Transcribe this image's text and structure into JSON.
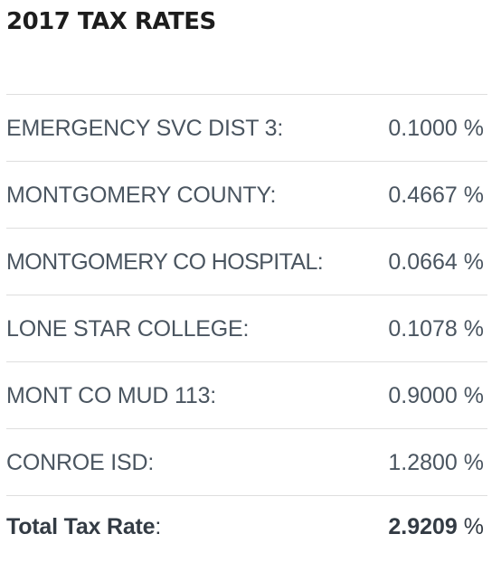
{
  "title": "2017 TAX RATES",
  "rows": [
    {
      "label": "EMERGENCY SVC DIST 3:",
      "value": "0.1000 %"
    },
    {
      "label": "MONTGOMERY COUNTY:",
      "value": "0.4667 %"
    },
    {
      "label": "MONTGOMERY CO HOSPITAL:",
      "value": "0.0664 %"
    },
    {
      "label": "LONE STAR COLLEGE:",
      "value": "0.1078 %"
    },
    {
      "label": "MONT CO MUD 113:",
      "value": "0.9000 %"
    },
    {
      "label": "CONROE ISD:",
      "value": "1.2800 %"
    }
  ],
  "total": {
    "label": "Total Tax Rate",
    "label_suffix": ":",
    "value": "2.9209",
    "unit": " %"
  }
}
